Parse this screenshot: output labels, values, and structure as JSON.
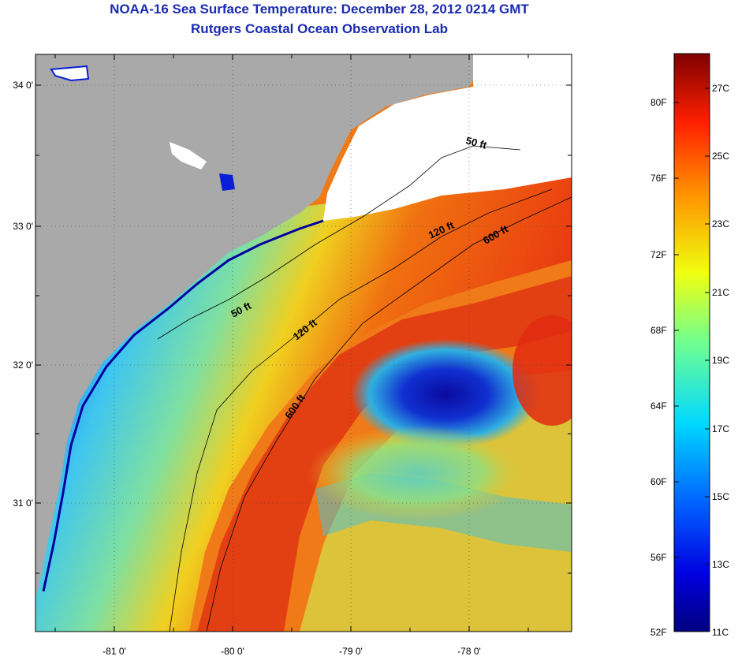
{
  "title": "NOAA-16 Sea Surface Temperature:  December 28, 2012 0214 GMT",
  "subtitle": "Rutgers Coastal Ocean Observation Lab",
  "map": {
    "lat_labels": [
      "34 0'",
      "33 0'",
      "32 0'",
      "31 0'"
    ],
    "lon_labels": [
      "-81 0'",
      "-80 0'",
      "-79 0'",
      "-78 0'"
    ],
    "depth_labels": [
      "50 ft",
      "120 ft",
      "600 ft",
      "50 ft",
      "120 ft",
      "600 ft"
    ]
  },
  "colorbar": {
    "fahrenheit": [
      "80F",
      "76F",
      "72F",
      "68F",
      "64F",
      "60F",
      "56F",
      "52F"
    ],
    "celsius": [
      "27C",
      "25C",
      "23C",
      "21C",
      "19C",
      "17C",
      "15C",
      "13C",
      "11C"
    ]
  },
  "colors": {
    "title": "#1a2bb0",
    "land": "#a9a9a9"
  }
}
